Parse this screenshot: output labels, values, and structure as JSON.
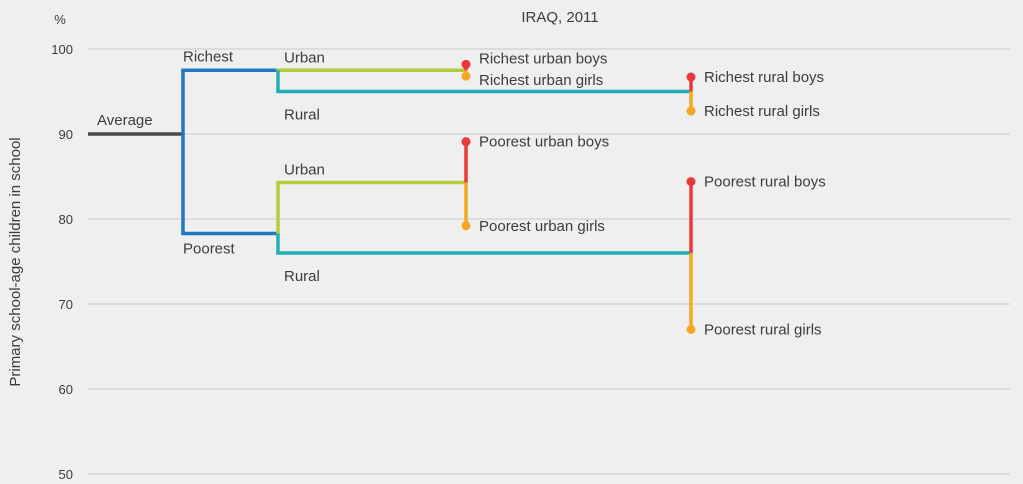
{
  "chart_data": {
    "type": "tree",
    "title": "IRAQ, 2011",
    "ylabel": "Primary school-age children in school",
    "yunit": "%",
    "ylim": [
      50,
      100
    ],
    "yticks": [
      100,
      90,
      80,
      70,
      60,
      50
    ],
    "grid": true,
    "colors": {
      "average": "#4a4a4a",
      "wealth": "#1f78c1",
      "location": "#22b0b5",
      "urban": "#b5cc3a",
      "boys": "#e8393a",
      "girls": "#f7a823",
      "grid": "#c9c9cc",
      "text": "#3c3c3c"
    },
    "average": {
      "label": "Average",
      "value": 90
    },
    "branches": [
      {
        "name": "Richest",
        "value": 97.5,
        "children": [
          {
            "name": "Urban",
            "value": 97.5,
            "leaves": [
              {
                "name": "Richest urban boys",
                "value": 98.2,
                "sex": "boys"
              },
              {
                "name": "Richest urban girls",
                "value": 96.8,
                "sex": "girls"
              }
            ]
          },
          {
            "name": "Rural",
            "value": 95,
            "leaves": [
              {
                "name": "Richest rural boys",
                "value": 96.7,
                "sex": "boys"
              },
              {
                "name": "Richest rural girls",
                "value": 92.7,
                "sex": "girls"
              }
            ]
          }
        ]
      },
      {
        "name": "Poorest",
        "value": 78.3,
        "children": [
          {
            "name": "Urban",
            "value": 84.3,
            "leaves": [
              {
                "name": "Poorest urban boys",
                "value": 89.1,
                "sex": "boys"
              },
              {
                "name": "Poorest urban girls",
                "value": 79.2,
                "sex": "girls"
              }
            ]
          },
          {
            "name": "Rural",
            "value": 76,
            "leaves": [
              {
                "name": "Poorest rural boys",
                "value": 84.4,
                "sex": "boys"
              },
              {
                "name": "Poorest rural girls",
                "value": 67,
                "sex": "girls"
              }
            ]
          }
        ]
      }
    ]
  }
}
